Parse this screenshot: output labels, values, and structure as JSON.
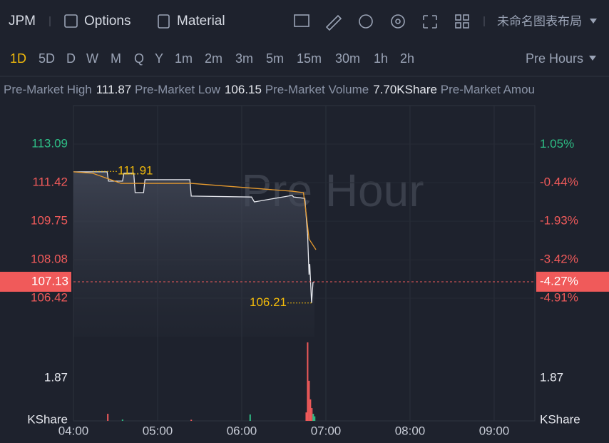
{
  "toolbar": {
    "symbol": "JPM",
    "options": "Options",
    "material": "Material",
    "layout": "未命名图表布局"
  },
  "intervals": {
    "items": [
      "1D",
      "5D",
      "D",
      "W",
      "M",
      "Q",
      "Y",
      "1m",
      "2m",
      "3m",
      "5m",
      "15m",
      "30m",
      "1h",
      "2h"
    ],
    "active": "1D",
    "session": "Pre Hours"
  },
  "stats": [
    {
      "label": "Pre-Market High",
      "value": "111.87"
    },
    {
      "label": "Pre-Market Low",
      "value": "106.15"
    },
    {
      "label": "Pre-Market Volume",
      "value": "7.70KShare"
    },
    {
      "label": "Pre-Market Amou",
      "value": ""
    }
  ],
  "chart_data": {
    "type": "line",
    "watermark": "Pre Hour",
    "xlim": [
      240,
      569
    ],
    "xticks": [
      {
        "value": 240,
        "label": "04:00"
      },
      {
        "value": 300,
        "label": "05:00"
      },
      {
        "value": 360,
        "label": "06:00"
      },
      {
        "value": 420,
        "label": "07:00"
      },
      {
        "value": 480,
        "label": "08:00"
      },
      {
        "value": 540,
        "label": "09:00"
      }
    ],
    "ylim": [
      104.75,
      114.76
    ],
    "yticks": [
      113.09,
      111.42,
      109.75,
      108.08,
      106.42
    ],
    "y2lim": [
      2.55,
      -6.4
    ],
    "y2ticks": [
      {
        "value": 1.05,
        "label": "1.05%"
      },
      {
        "value": -0.44,
        "label": "-0.44%"
      },
      {
        "value": -1.93,
        "label": "-1.93%"
      },
      {
        "value": -3.42,
        "label": "-3.42%"
      },
      {
        "value": -4.91,
        "label": "-4.91%"
      }
    ],
    "series": [
      {
        "color": "#e6e8ee",
        "x": [
          240,
          264,
          265,
          275,
          276,
          283,
          284,
          290,
          291,
          323,
          324,
          367,
          369,
          396,
          397,
          405,
          407,
          408,
          408.5,
          409.8,
          410.8,
          411.9
        ],
        "values": [
          111.89,
          111.89,
          111.49,
          111.49,
          111.83,
          111.83,
          110.99,
          110.99,
          111.55,
          111.55,
          110.84,
          110.8,
          110.59,
          110.87,
          110.8,
          110.74,
          109.14,
          107.44,
          107.9,
          106.21,
          107.1,
          107.13
        ]
      },
      {
        "color": "#e69a2e",
        "x": [
          240,
          253.7,
          263.9,
          274,
          324,
          396,
          404,
          406,
          408,
          412.9
        ],
        "values": [
          111.89,
          111.83,
          111.61,
          111.39,
          111.39,
          111.05,
          110.99,
          110.06,
          108.98,
          108.52
        ]
      }
    ],
    "high": 111.91,
    "low": 106.21,
    "last_price": 107.13,
    "last_change": {
      "value": -4.27,
      "label": "-4.27%"
    },
    "volume": {
      "unit": "KShare",
      "ylim": [
        0,
        3.49
      ],
      "yticks": [
        1.87
      ],
      "x": [
        264.5,
        275,
        324,
        366,
        406,
        407,
        408,
        409,
        410,
        411,
        412
      ],
      "values": [
        0.31,
        0.06,
        0.05,
        0.28,
        0.37,
        3.43,
        1.75,
        0.94,
        0.56,
        0.31,
        0.2
      ],
      "colors": [
        "#f05a5a",
        "#2ebd85",
        "#f05a5a",
        "#2ebd85",
        "#f05a5a",
        "#f05a5a",
        "#f05a5a",
        "#f05a5a",
        "#f05a5a",
        "#2ebd85",
        "#2ebd85"
      ]
    }
  }
}
